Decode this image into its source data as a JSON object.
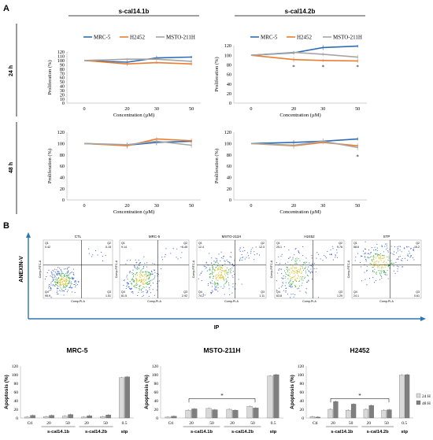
{
  "panel_a": {
    "letter": "A",
    "col_titles": [
      "s-cal14.1b",
      "s-cal14.2b"
    ],
    "row_labels": [
      "24 h",
      "48 h"
    ]
  },
  "panel_b": {
    "letter": "B",
    "flow": {
      "y_title": "ANEXIN-V",
      "x_title": "IP",
      "axis_y": "Comp-FITC-A",
      "axis_x": "Comp-PI-A",
      "plots": [
        {
          "name": "CTL",
          "q1": "Q1",
          "q1v": "0.42",
          "q2": "Q2",
          "q2v": "0.15",
          "q3": "Q3",
          "q3v": "1.51",
          "q4": "Q4",
          "q4v": "95.9"
        },
        {
          "name": "MRC-5",
          "q1": "Q1",
          "q1v": "9.14",
          "q2": "Q2",
          "q2v": "6.45",
          "q3": "Q3",
          "q3v": "2.92",
          "q4": "Q4",
          "q4v": "81.5"
        },
        {
          "name": "MSTO-211H",
          "q1": "Q1",
          "q1v": "12.4",
          "q2": "Q2",
          "q2v": "12.3",
          "q3": "Q3",
          "q3v": "1.11",
          "q4": "Q4",
          "q4v": "74.2"
        },
        {
          "name": "H2452",
          "q1": "Q1",
          "q1v": "25.1",
          "q2": "Q2",
          "q2v": "9.76",
          "q3": "Q3",
          "q3v": "1.29",
          "q4": "Q4",
          "q4v": "63.8"
        },
        {
          "name": "STP",
          "q1": "Q1",
          "q1v": "58.6",
          "q2": "Q2",
          "q2v": "15.2",
          "q3": "Q3",
          "q3v": "0.61",
          "q4": "Q4",
          "q4v": "24.1"
        }
      ]
    },
    "bar_legend": [
      "24 H",
      "48 H"
    ]
  },
  "chart_data": [
    {
      "type": "line",
      "panel": "A",
      "row": "24 h",
      "col": "s-cal14.1b",
      "x": [
        0,
        20,
        30,
        50
      ],
      "xlabel": "Concentration (µM)",
      "ylabel": "Proliferation (%)",
      "ylim": [
        0,
        120
      ],
      "yticks": [
        0,
        10,
        20,
        30,
        40,
        50,
        60,
        70,
        80,
        90,
        100,
        110,
        120
      ],
      "legend": "top",
      "series": [
        {
          "name": "MRC-5",
          "color": "#2e6db4",
          "values": [
            100,
            96,
            106,
            108
          ]
        },
        {
          "name": "H2452",
          "color": "#ed7d31",
          "values": [
            100,
            92,
            95,
            92
          ]
        },
        {
          "name": "MSTO-211H",
          "color": "#a5a5a5",
          "values": [
            100,
            103,
            103,
            98
          ]
        }
      ],
      "stars": []
    },
    {
      "type": "line",
      "panel": "A",
      "row": "24 h",
      "col": "s-cal14.2b",
      "x": [
        0,
        20,
        30,
        50
      ],
      "xlabel": "Concentration (µM)",
      "ylabel": "Proliferation (%)",
      "ylim": [
        0,
        120
      ],
      "yticks": [
        0,
        20,
        40,
        60,
        80,
        100,
        120
      ],
      "legend": "top",
      "series": [
        {
          "name": "MRC-5",
          "color": "#2e6db4",
          "values": [
            100,
            105,
            116,
            119
          ]
        },
        {
          "name": "H2452",
          "color": "#ed7d31",
          "values": [
            100,
            91,
            89,
            88
          ]
        },
        {
          "name": "MSTO-211H",
          "color": "#a5a5a5",
          "values": [
            100,
            106,
            102,
            96
          ]
        }
      ],
      "stars": [
        {
          "x": 20,
          "text": "*"
        },
        {
          "x": 30,
          "text": "*"
        },
        {
          "x": 50,
          "text": "*"
        }
      ]
    },
    {
      "type": "line",
      "panel": "A",
      "row": "48 h",
      "col": "s-cal14.1b",
      "x": [
        0,
        20,
        30,
        50
      ],
      "xlabel": "Concentration (µM)",
      "ylabel": "Proliferation (%)",
      "ylim": [
        0,
        120
      ],
      "yticks": [
        0,
        20,
        40,
        60,
        80,
        100,
        120
      ],
      "legend": "",
      "series": [
        {
          "name": "MRC-5",
          "color": "#2e6db4",
          "values": [
            100,
            97,
            102,
            104
          ]
        },
        {
          "name": "H2452",
          "color": "#ed7d31",
          "values": [
            100,
            96,
            108,
            105
          ]
        },
        {
          "name": "MSTO-211H",
          "color": "#a5a5a5",
          "values": [
            100,
            98,
            104,
            97
          ]
        }
      ],
      "stars": []
    },
    {
      "type": "line",
      "panel": "A",
      "row": "48 h",
      "col": "s-cal14.2b",
      "x": [
        0,
        20,
        30,
        50
      ],
      "xlabel": "Concentration (µM)",
      "ylabel": "Proliferation (%)",
      "ylim": [
        0,
        120
      ],
      "yticks": [
        0,
        20,
        40,
        60,
        80,
        100,
        120
      ],
      "legend": "",
      "series": [
        {
          "name": "MRC-5",
          "color": "#2e6db4",
          "values": [
            100,
            102,
            104,
            108
          ]
        },
        {
          "name": "H2452",
          "color": "#ed7d31",
          "values": [
            100,
            96,
            102,
            96
          ]
        },
        {
          "name": "MSTO-211H",
          "color": "#a5a5a5",
          "values": [
            100,
            97,
            104,
            93
          ]
        }
      ],
      "stars": [
        {
          "x": 50,
          "text": "*"
        }
      ]
    },
    {
      "type": "bar",
      "panel": "B",
      "title": "MRC-5",
      "ylabel": "Apoptosis (%)",
      "ylim": [
        0,
        120
      ],
      "yticks": [
        0,
        20,
        40,
        60,
        80,
        100,
        120
      ],
      "categories": [
        "Ctl",
        "20",
        "50",
        "20",
        "50",
        "0.5"
      ],
      "groups": [
        {
          "label": "s-cal14.1b",
          "from": 1,
          "to": 2
        },
        {
          "label": "s-cal14.2b",
          "from": 3,
          "to": 4
        },
        {
          "label": "stp",
          "from": 5,
          "to": 5
        }
      ],
      "series": [
        {
          "name": "24 H",
          "color": "#d9d9d9",
          "values": [
            2,
            3,
            4,
            2,
            3,
            93
          ]
        },
        {
          "name": "48 H",
          "color": "#7f7f7f",
          "values": [
            6,
            6,
            8,
            5,
            7,
            95
          ]
        }
      ],
      "bracket": null
    },
    {
      "type": "bar",
      "panel": "B",
      "title": "MSTO-211H",
      "ylabel": "Apoptosis (%)",
      "ylim": [
        0,
        120
      ],
      "yticks": [
        0,
        20,
        40,
        60,
        80,
        100,
        120
      ],
      "categories": [
        "Ctl",
        "20",
        "50",
        "20",
        "50",
        "0.5"
      ],
      "groups": [
        {
          "label": "s-cal14.1b",
          "from": 1,
          "to": 2
        },
        {
          "label": "s-cal14.2b",
          "from": 3,
          "to": 4
        },
        {
          "label": "stp",
          "from": 5,
          "to": 5
        }
      ],
      "series": [
        {
          "name": "24 H",
          "color": "#d9d9d9",
          "values": [
            2,
            18,
            22,
            20,
            27,
            97
          ]
        },
        {
          "name": "48 H",
          "color": "#7f7f7f",
          "values": [
            4,
            21,
            19,
            18,
            23,
            100
          ]
        }
      ],
      "bracket": {
        "from": 1,
        "to": 4,
        "text": "*"
      }
    },
    {
      "type": "bar",
      "panel": "B",
      "title": "H2452",
      "ylabel": "Apoptosis (%)",
      "ylim": [
        0,
        120
      ],
      "yticks": [
        0,
        20,
        40,
        60,
        80,
        100,
        120
      ],
      "categories": [
        "Ctl",
        "20",
        "50",
        "20",
        "50",
        "0.5"
      ],
      "groups": [
        {
          "label": "s-cal14.1b",
          "from": 1,
          "to": 2
        },
        {
          "label": "s-cal14.2b",
          "from": 3,
          "to": 4
        },
        {
          "label": "stp",
          "from": 5,
          "to": 5
        }
      ],
      "series": [
        {
          "name": "24 H",
          "color": "#d9d9d9",
          "values": [
            3,
            20,
            18,
            20,
            18,
            99
          ]
        },
        {
          "name": "48 H",
          "color": "#7f7f7f",
          "values": [
            2,
            38,
            32,
            29,
            19,
            100
          ]
        }
      ],
      "bracket": {
        "from": 1,
        "to": 4,
        "text": "*"
      }
    }
  ]
}
